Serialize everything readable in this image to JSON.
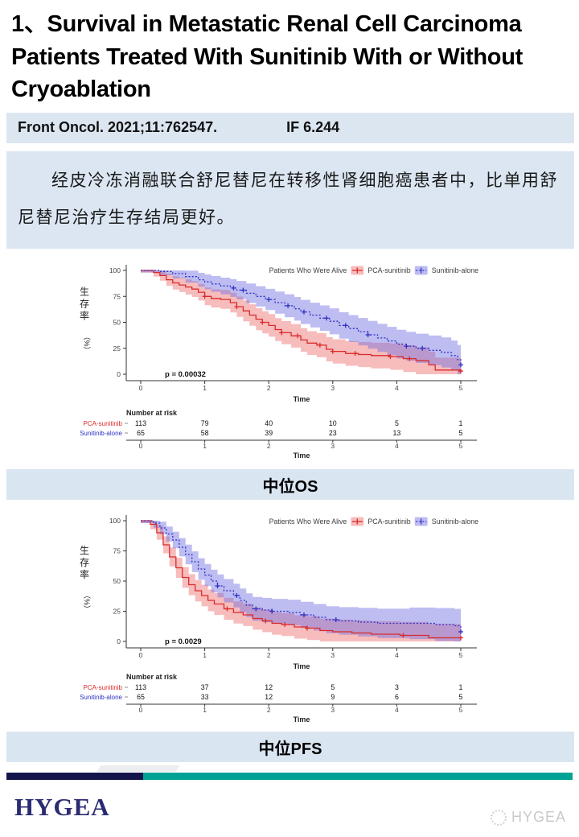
{
  "slide": {
    "title": "1、Survival in Metastatic Renal Cell Carcinoma Patients Treated With Sunitinib With or Without Cryoablation",
    "citation": "Front Oncol. 2021;11:762547.",
    "impact_factor": "IF 6.244",
    "summary": "经皮冷冻消融联合舒尼替尼在转移性肾细胞癌患者中，比单用舒尼替尼治疗生存结局更好。",
    "section_labels": {
      "os": "中位OS",
      "pfs": "中位PFS"
    },
    "footer": {
      "brand": "HYGEA",
      "watermark": "HYGEA"
    },
    "colors": {
      "panel_light_blue": "#dbe6f2",
      "bar_navy": "#14144d",
      "bar_teal": "#00a296",
      "brand_navy": "#2b2b72",
      "red_series": "#d92b2b",
      "blue_series": "#2f2fc4",
      "red_band": "rgba(233,80,80,0.38)",
      "blue_band": "rgba(108,108,226,0.45)"
    }
  },
  "chart_data": [
    {
      "type": "line",
      "subtype": "kaplan-meier",
      "title": "中位OS",
      "legend_title": "Patients Who Were Alive",
      "legend_position": "top-right",
      "xlabel": "Time",
      "ylabel": "生存率（%）",
      "xlim": [
        0,
        5
      ],
      "ylim": [
        0,
        100
      ],
      "xticks": [
        0,
        1,
        2,
        3,
        4,
        5
      ],
      "yticks": [
        0,
        25,
        50,
        75,
        100
      ],
      "grid": false,
      "p_value": "p = 0.00032",
      "series": [
        {
          "name": "PCA-sunitinib",
          "color": "#d92b2b",
          "band_color": "rgba(233,80,80,0.38)",
          "dashed": false,
          "points": [
            [
              0,
              100
            ],
            [
              0.2,
              98
            ],
            [
              0.3,
              95
            ],
            [
              0.4,
              91
            ],
            [
              0.5,
              88
            ],
            [
              0.6,
              86
            ],
            [
              0.7,
              84
            ],
            [
              0.8,
              82
            ],
            [
              0.9,
              79
            ],
            [
              1.0,
              75
            ],
            [
              1.1,
              73
            ],
            [
              1.25,
              72
            ],
            [
              1.4,
              69
            ],
            [
              1.5,
              65
            ],
            [
              1.6,
              61
            ],
            [
              1.7,
              57
            ],
            [
              1.8,
              53
            ],
            [
              1.9,
              50
            ],
            [
              2.0,
              47
            ],
            [
              2.1,
              43
            ],
            [
              2.2,
              40
            ],
            [
              2.35,
              37
            ],
            [
              2.5,
              33
            ],
            [
              2.6,
              30
            ],
            [
              2.75,
              28
            ],
            [
              2.9,
              24
            ],
            [
              3.0,
              22
            ],
            [
              3.2,
              20
            ],
            [
              3.4,
              19
            ],
            [
              3.6,
              18
            ],
            [
              3.9,
              17
            ],
            [
              4.1,
              15
            ],
            [
              4.3,
              13
            ],
            [
              4.5,
              9
            ],
            [
              4.6,
              4
            ],
            [
              5.0,
              3
            ]
          ],
          "censor_times": [
            1.0,
            1.5,
            1.9,
            2.2,
            2.45,
            2.8,
            3.0,
            3.35,
            3.9,
            4.2,
            5.0
          ]
        },
        {
          "name": "Sunitinib-alone",
          "color": "#2f2fc4",
          "band_color": "rgba(108,108,226,0.45)",
          "dashed": true,
          "points": [
            [
              0,
              100
            ],
            [
              0.3,
              99
            ],
            [
              0.5,
              97
            ],
            [
              0.7,
              94
            ],
            [
              0.9,
              91
            ],
            [
              1.0,
              89
            ],
            [
              1.1,
              87
            ],
            [
              1.25,
              85
            ],
            [
              1.4,
              83
            ],
            [
              1.5,
              81
            ],
            [
              1.65,
              78
            ],
            [
              1.8,
              75
            ],
            [
              1.95,
              72
            ],
            [
              2.1,
              69
            ],
            [
              2.25,
              66
            ],
            [
              2.4,
              63
            ],
            [
              2.5,
              60
            ],
            [
              2.65,
              57
            ],
            [
              2.8,
              54
            ],
            [
              2.95,
              51
            ],
            [
              3.1,
              47
            ],
            [
              3.25,
              44
            ],
            [
              3.4,
              41
            ],
            [
              3.55,
              38
            ],
            [
              3.7,
              35
            ],
            [
              3.85,
              32
            ],
            [
              4.0,
              29
            ],
            [
              4.15,
              27
            ],
            [
              4.3,
              25
            ],
            [
              4.5,
              23
            ],
            [
              4.7,
              21
            ],
            [
              4.85,
              18
            ],
            [
              4.95,
              14
            ],
            [
              5.0,
              9
            ]
          ],
          "censor_times": [
            1.45,
            1.6,
            2.0,
            2.3,
            2.55,
            2.9,
            3.2,
            3.55,
            4.15,
            4.4,
            5.0
          ]
        }
      ],
      "risk_table": {
        "title": "Number at risk",
        "xlabel": "Time",
        "time_ticks": [
          0,
          1,
          2,
          3,
          4,
          5
        ],
        "rows": [
          {
            "name": "PCA-sunitinib",
            "color": "#d92b2b",
            "values": [
              113,
              79,
              40,
              10,
              5,
              1
            ]
          },
          {
            "name": "Sunitinib-alone",
            "color": "#2f2fc4",
            "values": [
              65,
              58,
              39,
              23,
              13,
              5
            ]
          }
        ]
      }
    },
    {
      "type": "line",
      "subtype": "kaplan-meier",
      "title": "中位PFS",
      "legend_title": "Patients Who Were Alive",
      "legend_position": "top-right",
      "xlabel": "Time",
      "ylabel": "生存率（%）",
      "xlim": [
        0,
        5
      ],
      "ylim": [
        0,
        100
      ],
      "xticks": [
        0,
        1,
        2,
        3,
        4,
        5
      ],
      "yticks": [
        0,
        25,
        50,
        75,
        100
      ],
      "grid": false,
      "p_value": "p = 0.0029",
      "series": [
        {
          "name": "PCA-sunitinib",
          "color": "#d92b2b",
          "band_color": "rgba(233,80,80,0.38)",
          "dashed": false,
          "points": [
            [
              0,
              100
            ],
            [
              0.15,
              97
            ],
            [
              0.25,
              90
            ],
            [
              0.35,
              80
            ],
            [
              0.45,
              70
            ],
            [
              0.55,
              61
            ],
            [
              0.65,
              53
            ],
            [
              0.75,
              47
            ],
            [
              0.85,
              42
            ],
            [
              0.95,
              38
            ],
            [
              1.05,
              34
            ],
            [
              1.15,
              31
            ],
            [
              1.3,
              27
            ],
            [
              1.45,
              24
            ],
            [
              1.6,
              22
            ],
            [
              1.75,
              19
            ],
            [
              1.9,
              17
            ],
            [
              2.05,
              15
            ],
            [
              2.2,
              14
            ],
            [
              2.4,
              12
            ],
            [
              2.6,
              11
            ],
            [
              2.8,
              9
            ],
            [
              3.0,
              8
            ],
            [
              3.3,
              7
            ],
            [
              3.6,
              6
            ],
            [
              4.05,
              5
            ],
            [
              4.5,
              3
            ],
            [
              5.0,
              3
            ]
          ],
          "censor_times": [
            1.35,
            1.95,
            2.25,
            2.6,
            4.1,
            5.0
          ]
        },
        {
          "name": "Sunitinib-alone",
          "color": "#2f2fc4",
          "band_color": "rgba(108,108,226,0.45)",
          "dashed": true,
          "points": [
            [
              0,
              100
            ],
            [
              0.2,
              98
            ],
            [
              0.3,
              94
            ],
            [
              0.4,
              89
            ],
            [
              0.5,
              84
            ],
            [
              0.6,
              78
            ],
            [
              0.7,
              72
            ],
            [
              0.8,
              66
            ],
            [
              0.9,
              60
            ],
            [
              1.0,
              55
            ],
            [
              1.1,
              50
            ],
            [
              1.2,
              46
            ],
            [
              1.3,
              42
            ],
            [
              1.45,
              38
            ],
            [
              1.55,
              34
            ],
            [
              1.65,
              30
            ],
            [
              1.75,
              27
            ],
            [
              1.9,
              26
            ],
            [
              2.05,
              25
            ],
            [
              2.3,
              24
            ],
            [
              2.5,
              22
            ],
            [
              2.7,
              20
            ],
            [
              2.9,
              18
            ],
            [
              3.1,
              17
            ],
            [
              3.4,
              16
            ],
            [
              3.7,
              15
            ],
            [
              4.2,
              15
            ],
            [
              4.6,
              14
            ],
            [
              4.9,
              13
            ],
            [
              5.0,
              8
            ]
          ],
          "censor_times": [
            1.2,
            1.5,
            1.8,
            2.05,
            2.55,
            3.05,
            5.0
          ]
        }
      ],
      "risk_table": {
        "title": "Number at risk",
        "xlabel": "Time",
        "time_ticks": [
          0,
          1,
          2,
          3,
          4,
          5
        ],
        "rows": [
          {
            "name": "PCA-sunitinib",
            "color": "#d92b2b",
            "values": [
              113,
              37,
              12,
              5,
              3,
              1
            ]
          },
          {
            "name": "Sunitinib-alone",
            "color": "#2f2fc4",
            "values": [
              65,
              33,
              12,
              9,
              6,
              5
            ]
          }
        ]
      }
    }
  ]
}
